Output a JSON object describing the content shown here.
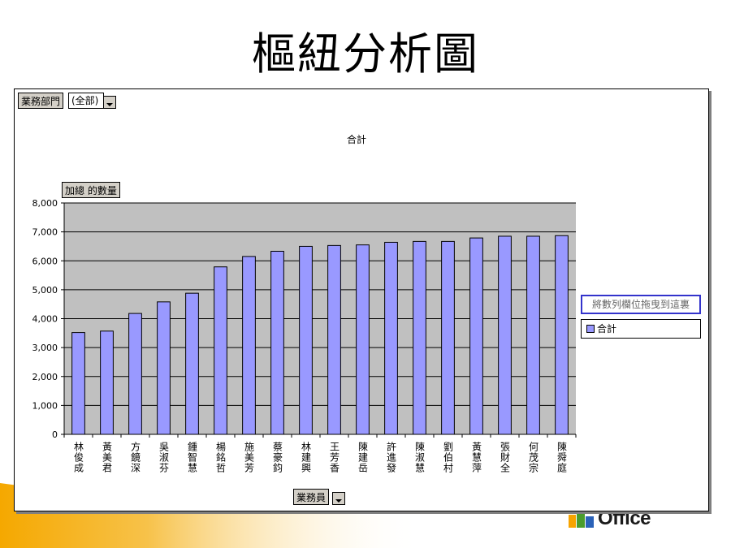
{
  "slide": {
    "title": "樞紐分析圖"
  },
  "logo": {
    "text": "Office"
  },
  "pivot": {
    "page_field": {
      "label": "業務部門",
      "value": "(全部)"
    },
    "data_field": "加總 的數量",
    "category_field": "業務員",
    "series_drop_hint": "將數列欄位拖曳到這裏"
  },
  "colors": {
    "bar": "#9999ff",
    "plot_background": "#c0c0c0",
    "drop_zone_border": "#3333cc"
  },
  "chart_data": {
    "type": "bar",
    "title": "合計",
    "xlabel": "",
    "ylabel": "",
    "ylim": [
      0,
      8000
    ],
    "yticks": [
      "0",
      "1,000",
      "2,000",
      "3,000",
      "4,000",
      "5,000",
      "6,000",
      "7,000",
      "8,000"
    ],
    "grid": true,
    "legend": "right",
    "categories": [
      "林俊成",
      "黃美君",
      "方鏡深",
      "吳淑芬",
      "鍾智慧",
      "楊銘哲",
      "施美芳",
      "蔡豪鈞",
      "林建興",
      "王芳香",
      "陳建岳",
      "許進發",
      "陳淑慧",
      "劉伯村",
      "黃慧萍",
      "張財全",
      "何茂宗",
      "陳舜庭"
    ],
    "series": [
      {
        "name": "合計",
        "values": [
          3520,
          3570,
          4180,
          4580,
          4880,
          5790,
          6150,
          6330,
          6500,
          6530,
          6550,
          6640,
          6670,
          6670,
          6790,
          6850,
          6850,
          6870
        ]
      }
    ]
  }
}
